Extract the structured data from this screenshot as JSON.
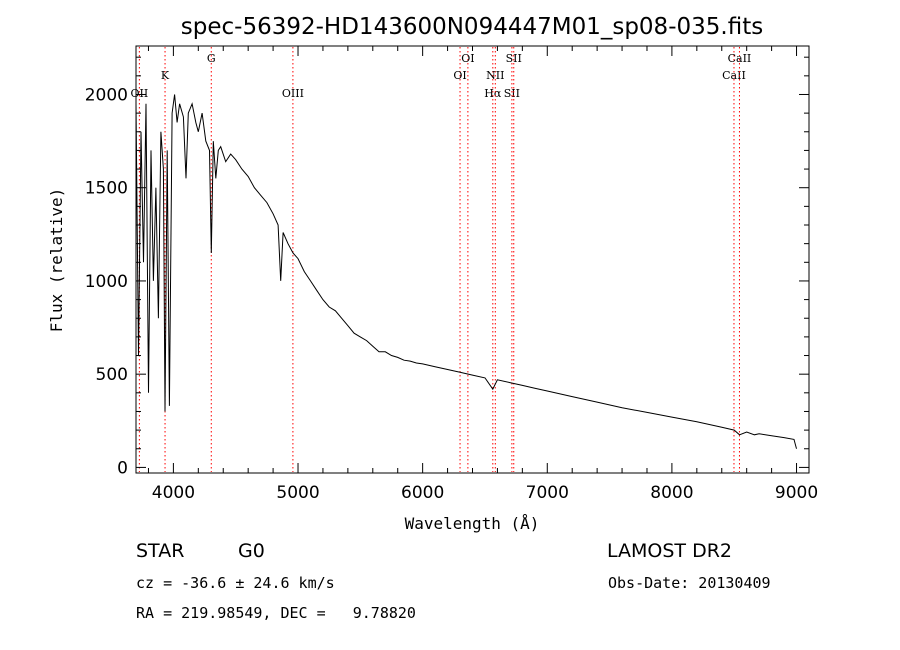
{
  "chart_data": {
    "type": "line",
    "title": "spec-56392-HD143600N094447M01_sp08-035.fits",
    "xlabel": "Wavelength (Å)",
    "ylabel": "Flux (relative)",
    "xlim": [
      3700,
      9100
    ],
    "ylim": [
      -30,
      2260
    ],
    "xticks": [
      4000,
      5000,
      6000,
      7000,
      8000,
      9000
    ],
    "yticks": [
      0,
      500,
      1000,
      1500,
      2000
    ],
    "grid": false,
    "series": [
      {
        "x": [
          3700,
          3720,
          3740,
          3760,
          3780,
          3800,
          3820,
          3840,
          3860,
          3880,
          3900,
          3920,
          3933,
          3950,
          3968,
          3990,
          4010,
          4030,
          4050,
          4080,
          4101,
          4120,
          4150,
          4180,
          4200,
          4230,
          4260,
          4290,
          4304,
          4320,
          4340,
          4360,
          4380,
          4420,
          4460,
          4500,
          4550,
          4600,
          4650,
          4700,
          4750,
          4800,
          4840,
          4861,
          4880,
          4920,
          4960,
          5000,
          5050,
          5100,
          5150,
          5200,
          5250,
          5300,
          5350,
          5400,
          5450,
          5500,
          5550,
          5600,
          5650,
          5700,
          5750,
          5800,
          5850,
          5900,
          5950,
          6000,
          6100,
          6200,
          6300,
          6400,
          6500,
          6563,
          6600,
          6700,
          6800,
          6900,
          7000,
          7200,
          7400,
          7600,
          7800,
          8000,
          8200,
          8400,
          8500,
          8542,
          8600,
          8662,
          8700,
          8800,
          8900,
          8980,
          9000
        ],
        "values": [
          1950,
          600,
          1800,
          1100,
          1950,
          400,
          1700,
          1000,
          1500,
          800,
          1800,
          1600,
          300,
          1700,
          330,
          1900,
          2000,
          1850,
          1950,
          1880,
          1550,
          1900,
          1950,
          1850,
          1800,
          1900,
          1750,
          1700,
          1150,
          1750,
          1550,
          1700,
          1720,
          1640,
          1680,
          1650,
          1600,
          1560,
          1500,
          1460,
          1420,
          1360,
          1300,
          1000,
          1260,
          1200,
          1150,
          1120,
          1050,
          1000,
          950,
          900,
          860,
          840,
          800,
          760,
          720,
          700,
          680,
          650,
          620,
          620,
          600,
          590,
          575,
          570,
          560,
          555,
          540,
          525,
          510,
          495,
          480,
          420,
          470,
          455,
          440,
          425,
          410,
          380,
          350,
          320,
          295,
          270,
          245,
          215,
          200,
          175,
          190,
          175,
          180,
          170,
          160,
          150,
          100
        ]
      }
    ],
    "line_markers": [
      {
        "label": "OII",
        "x": 3727,
        "row": 3
      },
      {
        "label": "K",
        "x": 3933,
        "row": 2
      },
      {
        "label": "G",
        "x": 4304,
        "row": 1
      },
      {
        "label": "OIII",
        "x": 4959,
        "row": 3
      },
      {
        "label": "OI",
        "x": 6300,
        "row": 2
      },
      {
        "label": "OI",
        "x": 6363,
        "row": 1
      },
      {
        "label": "Hα",
        "x": 6563,
        "row": 3
      },
      {
        "label": "NII",
        "x": 6583,
        "row": 2
      },
      {
        "label": "SII",
        "x": 6716,
        "row": 3
      },
      {
        "label": "SII",
        "x": 6731,
        "row": 1
      },
      {
        "label": "CaII",
        "x": 8498,
        "row": 2
      },
      {
        "label": "CaII",
        "x": 8542,
        "row": 1
      }
    ]
  },
  "info": {
    "object_class": "STAR",
    "subclass": "G0",
    "survey": "LAMOST DR2",
    "redshift": "cz = -36.6 ± 24.6 km/s",
    "obs_date": "Obs-Date: 20130409",
    "coords": "RA = 219.98549, DEC =   9.78820"
  },
  "colors": {
    "spectrum": "#000000",
    "marker_lines": "#ff0000",
    "background": "#ffffff"
  }
}
